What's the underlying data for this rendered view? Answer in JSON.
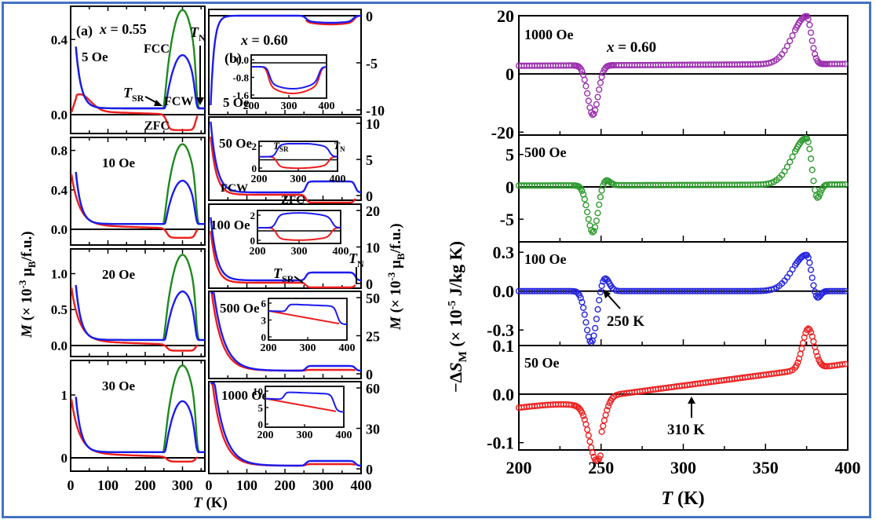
{
  "figure": {
    "left_xlabel_T": "T",
    "left_xlabel_unit": " (K)",
    "left_ylabel_M": "M",
    "left_ylabel_rest": " (× 10",
    "left_ylabel_exp": "-3",
    "left_ylabel_mu": " μ",
    "left_ylabel_B": "B",
    "left_ylabel_end": "/f.u.)",
    "right_xlabel_T": "T",
    "right_xlabel_unit": " (K)",
    "right_ylabel_pre": "−ΔS",
    "right_ylabel_sub": "M",
    "right_ylabel_mid": " (× 10",
    "right_ylabel_exp": "-5",
    "right_ylabel_end": " J/kg K)"
  },
  "chart_data": [
    {
      "type": "line",
      "title": "(a) x = 0.55",
      "panel_label": "(a)",
      "composition": "x = 0.55",
      "xlabel": "T (K)",
      "ylabel": "M (× 10^-3 μB/f.u.)",
      "xlim": [
        0,
        360
      ],
      "xticks": [
        "0",
        "100",
        "200",
        "300"
      ],
      "legend": [
        "ZFC",
        "FCC",
        "FCW"
      ],
      "series_colors": {
        "ZFC": "#ee1c1c",
        "FCC": "#1e8a1e",
        "FCW": "#1c1cee"
      },
      "annotations": [
        "FCC",
        "FCW",
        "ZFC",
        "TSR",
        "TN"
      ],
      "subplots": [
        {
          "field": "5 Oe",
          "ylim": [
            -0.08,
            0.56
          ],
          "yticks": [
            "0.0",
            "0.4"
          ],
          "ZFC_dip": -0.06,
          "FCC_peak": 0.53,
          "FCW_peak": 0.29,
          "T_SR": 250,
          "T_N": 340
        },
        {
          "field": "10 Oe",
          "ylim": [
            -0.15,
            0.9
          ],
          "yticks": [
            "0.0",
            "0.4",
            "0.8"
          ],
          "ZFC_dip": -0.05,
          "FCC_peak": 0.82,
          "FCW_peak": 0.45
        },
        {
          "field": "20 Oe",
          "ylim": [
            -0.2,
            1.3
          ],
          "yticks": [
            "0.0",
            "0.5",
            "1.0"
          ],
          "ZFC_dip": -0.02,
          "FCC_peak": 1.2,
          "FCW_peak": 0.69
        },
        {
          "field": "30 Oe",
          "ylim": [
            -0.2,
            1.5
          ],
          "yticks": [
            "0",
            "1"
          ],
          "ZFC_dip": 0.0,
          "FCC_peak": 1.4,
          "FCW_peak": 0.83
        }
      ]
    },
    {
      "type": "line",
      "title": "(b) x = 0.60",
      "panel_label": "(b)",
      "composition": "x = 0.60",
      "xlabel": "T (K)",
      "ylabel": "M (× 10^-3 μB/f.u.)",
      "xlim": [
        0,
        400
      ],
      "xticks": [
        "0",
        "100",
        "200",
        "300",
        "400"
      ],
      "legend": [
        "ZFC",
        "FCW"
      ],
      "series_colors": {
        "ZFC": "#ee1c1c",
        "FCW": "#1c1cee"
      },
      "subplots": [
        {
          "field": "5 Oe",
          "yticks_right": [
            "0",
            "-5",
            "-10"
          ],
          "inset": {
            "xticks": [
              "200",
              "300",
              "400"
            ],
            "yticks": [
              "0.0",
              "-0.8",
              "-1.6"
            ]
          }
        },
        {
          "field": "50 Oe",
          "yticks_right": [
            "10",
            "5",
            "0"
          ],
          "labels": [
            "FCW",
            "ZFC"
          ],
          "inset": {
            "xticks": [
              "200",
              "300",
              "400"
            ],
            "yticks": [
              "2",
              "0"
            ],
            "annotations": [
              "TSR",
              "TN"
            ]
          }
        },
        {
          "field": "100 Oe",
          "yticks_right": [
            "20",
            "10",
            "0"
          ],
          "annotations": [
            "TSR",
            "TN"
          ],
          "inset": {
            "xticks": [
              "200",
              "300",
              "400"
            ],
            "yticks": [
              "2",
              "0"
            ]
          }
        },
        {
          "field": "500 Oe",
          "yticks_right": [
            "50",
            "25",
            "0"
          ],
          "inset": {
            "xticks": [
              "200",
              "300",
              "400"
            ],
            "yticks": [
              "6",
              "3",
              "0"
            ]
          }
        },
        {
          "field": "1000 Oe",
          "yticks_right": [
            "60",
            "30",
            "0"
          ],
          "inset": {
            "xticks": [
              "200",
              "300",
              "400"
            ],
            "yticks": [
              "10",
              "5",
              "0"
            ]
          }
        }
      ]
    },
    {
      "type": "scatter",
      "title": "x = 0.60",
      "xlabel": "T (K)",
      "ylabel": "−ΔSM (× 10^-5 J/kg K)",
      "xlim": [
        200,
        400
      ],
      "xticks": [
        "200",
        "250",
        "300",
        "350",
        "400"
      ],
      "subplots": [
        {
          "field": "1000 Oe",
          "color": "#9b2fae",
          "ylim": [
            -21,
            20
          ],
          "yticks": [
            "20",
            "0",
            "-20"
          ],
          "min": {
            "T": 245,
            "value": -17
          },
          "max": {
            "T": 375,
            "value": 16.5
          }
        },
        {
          "field": "500 Oe",
          "color": "#2e9a2e",
          "ylim": [
            -8.5,
            8
          ],
          "yticks": [
            "5",
            "0",
            "-5"
          ],
          "min": {
            "T": 245,
            "value": -7.3
          },
          "max": {
            "T": 375,
            "value": 7.2
          },
          "min2": {
            "T": 381,
            "value": -2.6
          }
        },
        {
          "field": "100 Oe",
          "color": "#2525e0",
          "ylim": [
            -0.42,
            0.38
          ],
          "yticks": [
            "0.3",
            "0.0",
            "-0.3"
          ],
          "min": {
            "T": 244,
            "value": -0.4
          },
          "max": {
            "T": 375,
            "value": 0.28
          },
          "annotation": {
            "text": "250 K",
            "T": 250
          }
        },
        {
          "field": "50 Oe",
          "color": "#ee2020",
          "ylim": [
            -0.115,
            0.1
          ],
          "yticks": [
            "0.1",
            "0.0",
            "-0.1"
          ],
          "min": {
            "T": 247,
            "value": -0.105
          },
          "max": {
            "T": 376,
            "value": 0.083
          },
          "annotation": {
            "text": "310 K",
            "T": 310
          }
        }
      ]
    }
  ]
}
